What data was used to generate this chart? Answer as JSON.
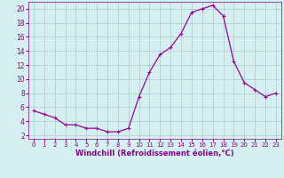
{
  "x": [
    0,
    1,
    2,
    3,
    4,
    5,
    6,
    7,
    8,
    9,
    10,
    11,
    12,
    13,
    14,
    15,
    16,
    17,
    18,
    19,
    20,
    21,
    22,
    23
  ],
  "y": [
    5.5,
    5.0,
    4.5,
    3.5,
    3.5,
    3.0,
    3.0,
    2.5,
    2.5,
    3.0,
    7.5,
    11.0,
    13.5,
    14.5,
    16.5,
    19.5,
    20.0,
    20.5,
    19.0,
    12.5,
    9.5,
    8.5,
    7.5,
    8.0
  ],
  "line_color": "#990099",
  "marker": "+",
  "marker_size": 3.5,
  "marker_linewidth": 0.8,
  "bg_color": "#d4f0f0",
  "grid_color": "#aacccc",
  "xlabel": "Windchill (Refroidissement éolien,°C)",
  "xlabel_color": "#880088",
  "tick_color": "#880088",
  "ylim": [
    1.5,
    21.0
  ],
  "xlim": [
    -0.5,
    23.5
  ],
  "yticks": [
    2,
    4,
    6,
    8,
    10,
    12,
    14,
    16,
    18,
    20
  ],
  "xticks": [
    0,
    1,
    2,
    3,
    4,
    5,
    6,
    7,
    8,
    9,
    10,
    11,
    12,
    13,
    14,
    15,
    16,
    17,
    18,
    19,
    20,
    21,
    22,
    23
  ],
  "linewidth": 0.9,
  "xlabel_fontsize": 6.0,
  "tick_fontsize_x": 5.0,
  "tick_fontsize_y": 5.5
}
